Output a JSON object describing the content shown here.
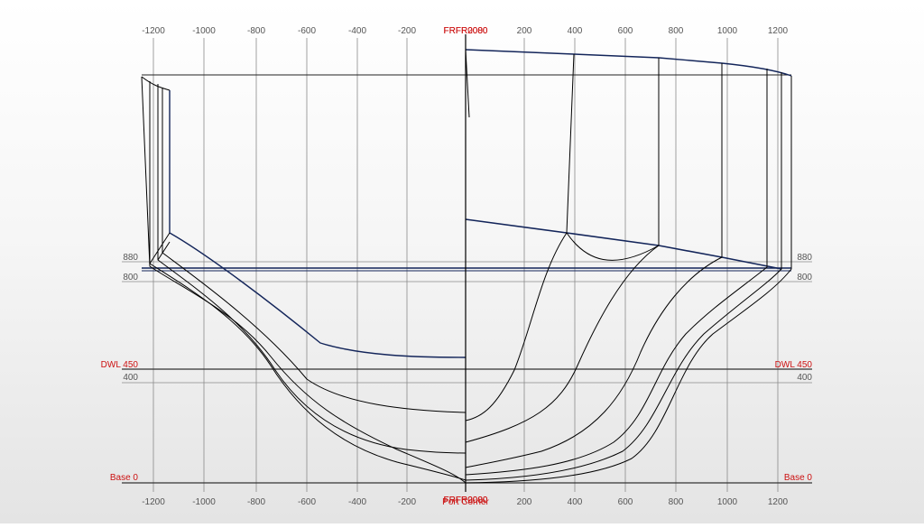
{
  "colors": {
    "grid": "#555555",
    "grid_light": "#8a8a8a",
    "hull": "#000000",
    "hull_dark": "#13255a",
    "label_red": "#cc1111",
    "label_gray": "#555555"
  },
  "x_ticks": [
    "-1200",
    "-1000",
    "-800",
    "-600",
    "-400",
    "-200",
    "200",
    "400",
    "600",
    "800",
    "1000",
    "1200"
  ],
  "center_top_labels": [
    "FRFR0000",
    "FRFR2080"
  ],
  "center_bottom_labels": [
    "FRFR0000",
    "FRFR2080",
    "Port Corner"
  ],
  "waterlines": [
    {
      "label": "880",
      "color_key": "label_gray"
    },
    {
      "label": "800",
      "color_key": "label_gray"
    },
    {
      "label": "DWL 450",
      "color_key": "label_red"
    },
    {
      "label": "400",
      "color_key": "label_gray"
    },
    {
      "label": "Base 0",
      "color_key": "label_red"
    }
  ]
}
